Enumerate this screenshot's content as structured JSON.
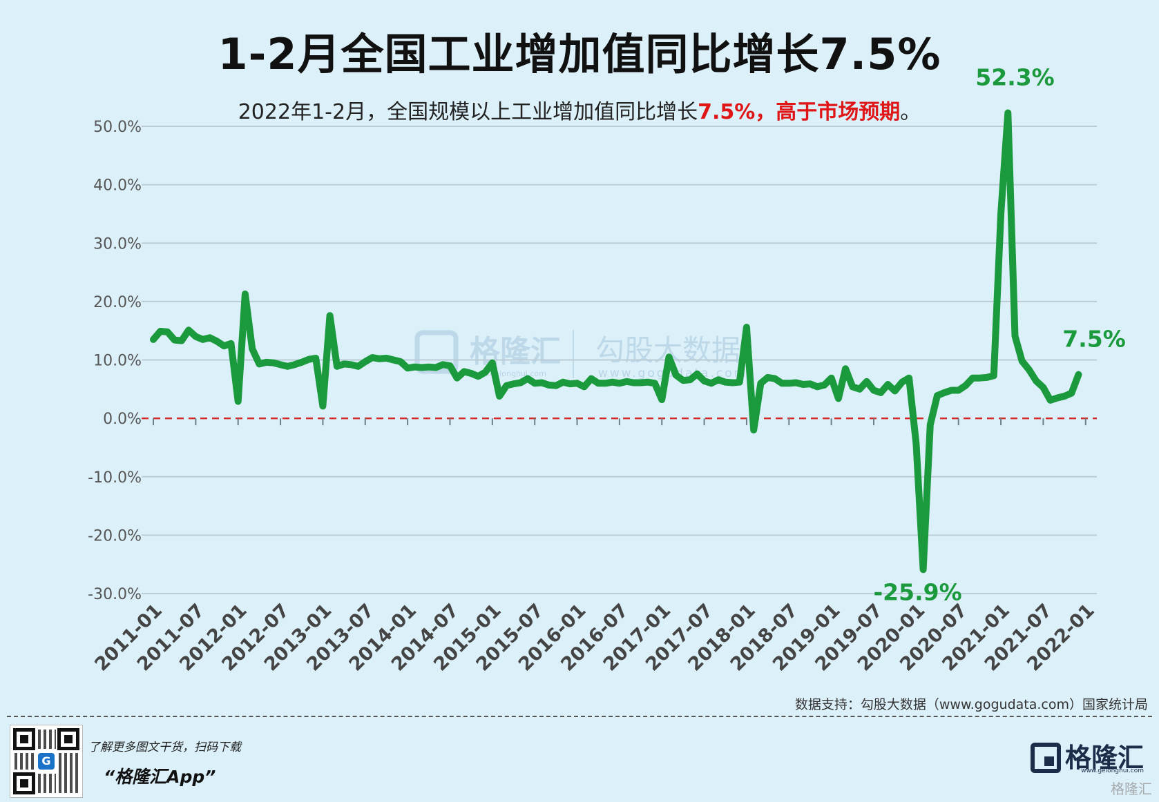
{
  "title": "1-2月全国工业增加值同比增长7.5%",
  "subtitle": {
    "prefix": "2022年1-2月，全国规模以上工业增加值同比增长",
    "highlight": "7.5%，高于市场预期",
    "suffix": "。"
  },
  "source": "数据支持：勾股大数据（www.gogudata.com）国家统计局",
  "watermark": {
    "logo": "格隆汇",
    "logo_url": "www.gelonghui.com",
    "brand": "勾股大数据",
    "brand_url": "www.gogudata.com"
  },
  "footer": {
    "promo_line": "了解更多图文干货，扫码下载",
    "app_name": "“格隆汇App”",
    "logo_text": "格隆汇",
    "logo_url": "www.gelonghui.com",
    "corner_mark": "格隆汇"
  },
  "colors": {
    "background": "#dcf0f9",
    "line": "#1a9a3c",
    "zero_line": "#d42a2a",
    "highlight_text": "#e01515",
    "annotation": "#1a9a3c"
  },
  "chart_data": {
    "type": "line",
    "title": "1-2月全国工业增加值同比增长7.5%",
    "xlabel": "",
    "ylabel": "",
    "ylim": [
      -30,
      50
    ],
    "yticks": [
      50,
      40,
      30,
      20,
      10,
      0,
      -10,
      -20,
      -30
    ],
    "ytick_labels": [
      "50.0%",
      "40.0%",
      "30.0%",
      "20.0%",
      "10.0%",
      "0.0%",
      "-10.0%",
      "-20.0%",
      "-30.0%"
    ],
    "xtick_labels": [
      "2011-01",
      "2011-07",
      "2012-01",
      "2012-07",
      "2013-01",
      "2013-07",
      "2014-01",
      "2014-07",
      "2015-01",
      "2015-07",
      "2016-01",
      "2016-07",
      "2017-01",
      "2017-07",
      "2018-01",
      "2018-07",
      "2019-01",
      "2019-07",
      "2020-01",
      "2020-07",
      "2021-01",
      "2021-07",
      "2022-01"
    ],
    "x_start": "2011-01",
    "x_end": "2022-02",
    "grid": true,
    "reference_line": 0,
    "annotations": [
      {
        "x": "2021-03",
        "y": 52.3,
        "text": "52.3%"
      },
      {
        "x": "2020-02",
        "y": -25.9,
        "text": "-25.9%"
      },
      {
        "x": "2022-02",
        "y": 7.5,
        "text": "7.5%"
      }
    ],
    "series": [
      {
        "values": [
          [
            0,
            13.5
          ],
          [
            1,
            14.9
          ],
          [
            2,
            14.8
          ],
          [
            3,
            13.4
          ],
          [
            4,
            13.3
          ],
          [
            5,
            15.1
          ],
          [
            6,
            14.0
          ],
          [
            7,
            13.5
          ],
          [
            8,
            13.8
          ],
          [
            9,
            13.2
          ],
          [
            10,
            12.4
          ],
          [
            11,
            12.8
          ],
          [
            12,
            2.9
          ],
          [
            13,
            21.3
          ],
          [
            14,
            11.9
          ],
          [
            15,
            9.3
          ],
          [
            16,
            9.6
          ],
          [
            17,
            9.5
          ],
          [
            18,
            9.2
          ],
          [
            19,
            8.9
          ],
          [
            20,
            9.2
          ],
          [
            21,
            9.6
          ],
          [
            22,
            10.1
          ],
          [
            23,
            10.3
          ],
          [
            24,
            2.1
          ],
          [
            25,
            17.6
          ],
          [
            26,
            8.9
          ],
          [
            27,
            9.3
          ],
          [
            28,
            9.2
          ],
          [
            29,
            8.9
          ],
          [
            30,
            9.7
          ],
          [
            31,
            10.4
          ],
          [
            32,
            10.2
          ],
          [
            33,
            10.3
          ],
          [
            34,
            10.0
          ],
          [
            35,
            9.7
          ],
          [
            36,
            8.6
          ],
          [
            37,
            8.8
          ],
          [
            38,
            8.7
          ],
          [
            39,
            8.8
          ],
          [
            40,
            8.7
          ],
          [
            41,
            9.2
          ],
          [
            42,
            9.0
          ],
          [
            43,
            6.9
          ],
          [
            44,
            8.0
          ],
          [
            45,
            7.7
          ],
          [
            46,
            7.2
          ],
          [
            47,
            7.9
          ],
          [
            48,
            9.5
          ],
          [
            49,
            3.8
          ],
          [
            50,
            5.6
          ],
          [
            51,
            5.9
          ],
          [
            52,
            6.1
          ],
          [
            53,
            6.8
          ],
          [
            54,
            6.0
          ],
          [
            55,
            6.1
          ],
          [
            56,
            5.7
          ],
          [
            57,
            5.6
          ],
          [
            58,
            6.2
          ],
          [
            59,
            5.9
          ],
          [
            60,
            6.0
          ],
          [
            61,
            5.4
          ],
          [
            62,
            6.8
          ],
          [
            63,
            6.0
          ],
          [
            64,
            6.0
          ],
          [
            65,
            6.2
          ],
          [
            66,
            6.0
          ],
          [
            67,
            6.3
          ],
          [
            68,
            6.1
          ],
          [
            69,
            6.1
          ],
          [
            70,
            6.2
          ],
          [
            71,
            6.0
          ],
          [
            72,
            3.2
          ],
          [
            73,
            10.5
          ],
          [
            74,
            7.4
          ],
          [
            75,
            6.5
          ],
          [
            76,
            6.6
          ],
          [
            77,
            7.6
          ],
          [
            78,
            6.4
          ],
          [
            79,
            6.0
          ],
          [
            80,
            6.6
          ],
          [
            81,
            6.2
          ],
          [
            82,
            6.1
          ],
          [
            83,
            6.2
          ],
          [
            84,
            15.6
          ],
          [
            85,
            -2.0
          ],
          [
            86,
            6.0
          ],
          [
            87,
            7.0
          ],
          [
            88,
            6.8
          ],
          [
            89,
            6.0
          ],
          [
            90,
            6.0
          ],
          [
            91,
            6.1
          ],
          [
            92,
            5.8
          ],
          [
            93,
            5.9
          ],
          [
            94,
            5.4
          ],
          [
            95,
            5.7
          ],
          [
            96,
            6.9
          ],
          [
            97,
            3.4
          ],
          [
            98,
            8.5
          ],
          [
            99,
            5.4
          ],
          [
            100,
            5.0
          ],
          [
            101,
            6.3
          ],
          [
            102,
            4.8
          ],
          [
            103,
            4.4
          ],
          [
            104,
            5.8
          ],
          [
            105,
            4.7
          ],
          [
            106,
            6.2
          ],
          [
            107,
            6.9
          ],
          [
            108,
            -4.3
          ],
          [
            109,
            -25.9
          ],
          [
            110,
            -1.1
          ],
          [
            111,
            3.9
          ],
          [
            112,
            4.4
          ],
          [
            113,
            4.8
          ],
          [
            114,
            4.8
          ],
          [
            115,
            5.6
          ],
          [
            116,
            6.9
          ],
          [
            117,
            6.9
          ],
          [
            118,
            7.0
          ],
          [
            119,
            7.3
          ],
          [
            120,
            35.1
          ],
          [
            121,
            52.3
          ],
          [
            122,
            14.1
          ],
          [
            123,
            9.8
          ],
          [
            124,
            8.3
          ],
          [
            125,
            6.4
          ],
          [
            126,
            5.3
          ],
          [
            127,
            3.1
          ],
          [
            128,
            3.5
          ],
          [
            129,
            3.8
          ],
          [
            130,
            4.3
          ],
          [
            131,
            7.5
          ]
        ]
      }
    ]
  }
}
